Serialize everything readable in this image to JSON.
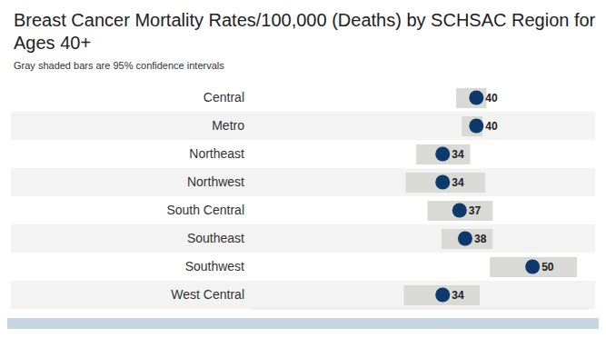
{
  "chart_data": {
    "type": "dot",
    "title": "Breast Cancer Mortality Rates/100,000 (Deaths) by SCHSAC Region for Ages 40+",
    "subtitle": "Gray shaded bars are 95% confidence intervals",
    "orientation": "horizontal",
    "categories": [
      "Central",
      "Metro",
      "Northeast",
      "Northwest",
      "South Central",
      "Southeast",
      "Southwest",
      "West Central"
    ],
    "values": [
      40,
      40,
      34,
      34,
      37,
      38,
      50,
      34
    ],
    "ci_low": [
      36.4,
      37.4,
      29.3,
      27.4,
      31.3,
      33.8,
      42.4,
      27.1
    ],
    "ci_high": [
      41.8,
      41.1,
      38.9,
      41.6,
      42.9,
      42.9,
      57.9,
      40.6
    ],
    "color": "#0d3a6b",
    "xlim": [
      0,
      60
    ],
    "xticks": [],
    "tick_labels": "y",
    "data_labels": true,
    "grid": false
  }
}
